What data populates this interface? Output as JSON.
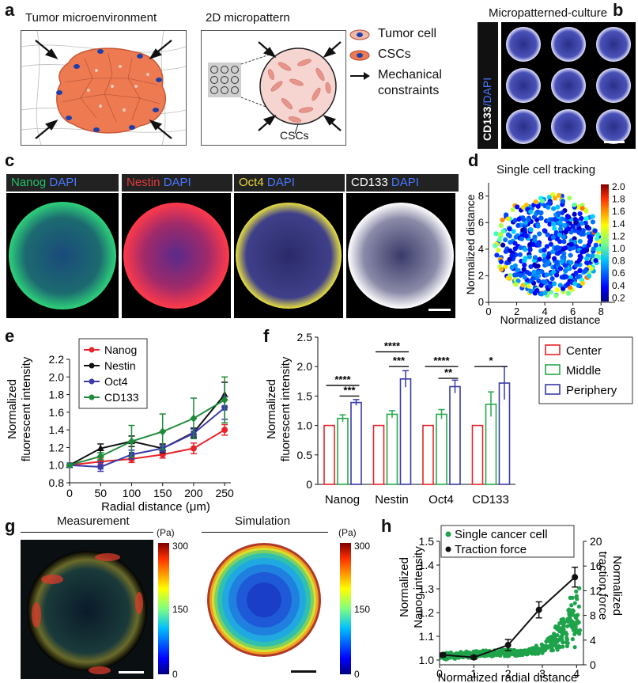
{
  "panels": {
    "a": {
      "label": "a",
      "left_title": "Tumor microenvironment",
      "right_title": "2D micropattern",
      "bottom_label": "CSCs",
      "legend": [
        {
          "label": "Tumor cell",
          "icon": "tumor-cell-icon"
        },
        {
          "label": "CSCs",
          "icon": "csc-icon"
        },
        {
          "label": "Mechanical\nconstraints",
          "icon": "arrow-icon"
        }
      ],
      "legend_line2": "constraints",
      "legend_line1": "Mechanical"
    },
    "b": {
      "label": "b",
      "title": "Micropatterned-culture",
      "side_text": "CD133",
      "side_text2": "/DAPI"
    },
    "c": {
      "label": "c",
      "images": [
        {
          "marker": "Nanog",
          "dapi": "DAPI",
          "color": "#22c06a"
        },
        {
          "marker": "Nestin",
          "dapi": "DAPI",
          "color": "#e23a3a"
        },
        {
          "marker": "Oct4",
          "dapi": "DAPI",
          "color": "#e8d83a"
        },
        {
          "marker": "CD133",
          "dapi": "DAPI",
          "color": "#ffffff"
        }
      ],
      "dapi_color": "#4a78ff"
    },
    "d": {
      "label": "d",
      "title": "Single cell tracking",
      "xlabel": "Normalized distance",
      "ylabel": "Normalized distance",
      "colorbar_ticks": [
        "2.0",
        "1.8",
        "1.6",
        "1.4",
        "1.2",
        "1.0",
        "0.8",
        "0.6",
        "0.4",
        "0.2"
      ]
    },
    "e": {
      "label": "e"
    },
    "f": {
      "label": "f"
    },
    "g": {
      "label": "g",
      "left_title": "Measurement",
      "right_title": "Simulation",
      "unit": "(Pa)",
      "ticks": [
        "300",
        "150",
        "0"
      ]
    },
    "h": {
      "label": "h"
    }
  },
  "chart_data": [
    {
      "id": "d",
      "type": "scatter",
      "title": "Single cell tracking",
      "xlabel": "Normalized distance",
      "ylabel": "Normalized distance",
      "xlim": [
        0,
        9
      ],
      "ylim": [
        0,
        9
      ],
      "xticks": [
        0,
        2,
        4,
        6,
        8
      ],
      "yticks": [
        0,
        2,
        4,
        6,
        8
      ],
      "colorbar_range": [
        0.1,
        2.0
      ]
    },
    {
      "id": "e",
      "type": "line",
      "xlabel": "Radial distance (μm)",
      "ylabel": "Normalized\nfluorescent intensity",
      "ylabel_line1": "Normalized",
      "ylabel_line2": "fluorescent intensity",
      "xlim": [
        0,
        260
      ],
      "ylim": [
        0.8,
        2.2
      ],
      "xticks": [
        "0",
        "50",
        "100",
        "150",
        "200",
        "250"
      ],
      "yticks": [
        "0.8",
        "1.0",
        "1.2",
        "1.4",
        "1.6",
        "1.8",
        "2.0",
        "2.2"
      ],
      "x": [
        0,
        50,
        100,
        150,
        200,
        250
      ],
      "series": [
        {
          "name": "Nanog",
          "color": "#e8232a",
          "marker": "circle",
          "values": [
            1.0,
            1.04,
            1.07,
            1.12,
            1.19,
            1.4
          ],
          "err": [
            0,
            0.04,
            0.04,
            0.04,
            0.06,
            0.06
          ]
        },
        {
          "name": "Nestin",
          "color": "#111111",
          "marker": "triangle",
          "values": [
            1.0,
            1.19,
            1.27,
            1.19,
            1.37,
            1.8
          ],
          "err": [
            0,
            0.05,
            0.06,
            0.05,
            0.05,
            0.14
          ]
        },
        {
          "name": "Oct4",
          "color": "#3a3aa8",
          "marker": "square",
          "values": [
            1.0,
            0.98,
            1.12,
            1.19,
            1.36,
            1.65
          ],
          "err": [
            0,
            0.05,
            0.05,
            0.04,
            0.05,
            0.13
          ]
        },
        {
          "name": "CD133",
          "color": "#1e8b3a",
          "marker": "diamond",
          "values": [
            1.0,
            1.1,
            1.27,
            1.38,
            1.53,
            1.74
          ],
          "err": [
            0,
            0.04,
            0.18,
            0.2,
            0.23,
            0.26
          ]
        }
      ]
    },
    {
      "id": "f",
      "type": "bar",
      "ylabel": "Normalized\nfluorescent intensity",
      "ylabel_line1": "Normalized",
      "ylabel_line2": "fluorescent intensity",
      "ylim": [
        0,
        2.5
      ],
      "yticks": [
        "0",
        "0.5",
        "1.0",
        "1.5",
        "2.0",
        "2.5"
      ],
      "categories": [
        "Nanog",
        "Nestin",
        "Oct4",
        "CD133"
      ],
      "series": [
        {
          "name": "Center",
          "color": "#e8232a",
          "values": [
            1.0,
            1.0,
            1.0,
            1.0
          ],
          "err": [
            0,
            0,
            0,
            0
          ]
        },
        {
          "name": "Middle",
          "color": "#26a84a",
          "values": [
            1.12,
            1.19,
            1.19,
            1.36
          ],
          "err": [
            0.06,
            0.06,
            0.08,
            0.21
          ]
        },
        {
          "name": "Periphery",
          "color": "#3a3aa8",
          "values": [
            1.39,
            1.79,
            1.66,
            1.72
          ],
          "err": [
            0.05,
            0.14,
            0.11,
            0.28
          ]
        }
      ],
      "significance": [
        {
          "label": "****",
          "cat": 0,
          "from": 0,
          "to": 2,
          "y": 1.68
        },
        {
          "label": "***",
          "cat": 0,
          "from": 1,
          "to": 2,
          "y": 1.5
        },
        {
          "label": "****",
          "cat": 1,
          "from": 0,
          "to": 2,
          "y": 2.25
        },
        {
          "label": "***",
          "cat": 1,
          "from": 1,
          "to": 2,
          "y": 2.0
        },
        {
          "label": "****",
          "cat": 2,
          "from": 0,
          "to": 2,
          "y": 2.0
        },
        {
          "label": "**",
          "cat": 2,
          "from": 1,
          "to": 2,
          "y": 1.8
        },
        {
          "label": "*",
          "cat": 3,
          "from": 0,
          "to": 2,
          "y": 2.0
        }
      ]
    },
    {
      "id": "h",
      "type": "scatter",
      "xlabel": "Normalized radial distance",
      "ylabel_left": "Normalized\nNanog intensity",
      "ylabel_left1": "Normalized",
      "ylabel_left2": "Nanog intensity",
      "ylabel_right1": "Normalized",
      "ylabel_right2": "traction force",
      "xlim": [
        0,
        4.2
      ],
      "ylim_left": [
        0.98,
        1.5
      ],
      "ylim_right": [
        0,
        20
      ],
      "xticks": [
        "0",
        "1",
        "2",
        "3",
        "4"
      ],
      "yticks_left": [
        "1.0",
        "1.1",
        "1.2",
        "1.3",
        "1.4",
        "1.5"
      ],
      "yticks_right": [
        "0",
        "4",
        "8",
        "12",
        "16",
        "20"
      ],
      "legend": [
        "Single cancer cell",
        "Traction force"
      ],
      "series": [
        {
          "name": "Traction force",
          "color": "#111111",
          "axis": "right",
          "x": [
            0.1,
            1.0,
            2.0,
            2.9,
            3.95
          ],
          "y": [
            1.6,
            1.2,
            3.2,
            8.9,
            14.2
          ],
          "err": [
            0.3,
            0.3,
            0.9,
            1.3,
            1.6
          ]
        },
        {
          "name": "Single cancer cell",
          "color": "#1ea34a",
          "axis": "left"
        }
      ]
    }
  ]
}
